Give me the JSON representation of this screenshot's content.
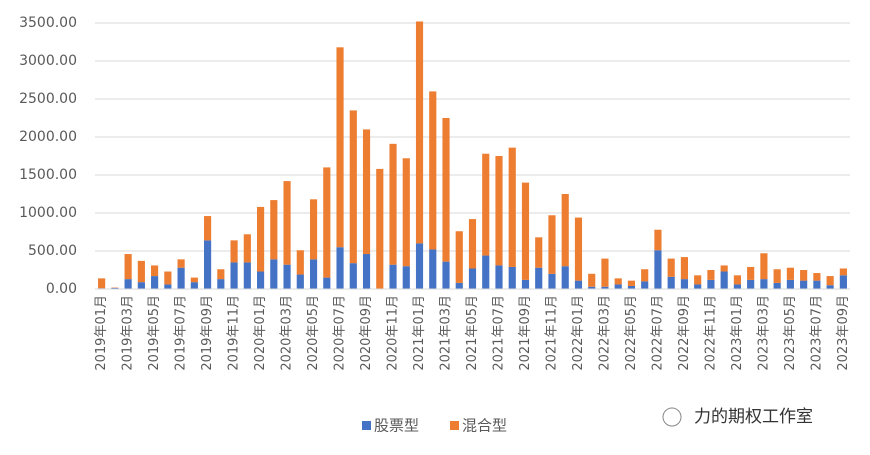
{
  "chart_data": {
    "type": "stacked_bar",
    "categories": [
      "2019年01月",
      null,
      "2019年03月",
      null,
      "2019年05月",
      null,
      "2019年07月",
      null,
      "2019年09月",
      null,
      "2019年11月",
      null,
      "2020年01月",
      null,
      "2020年03月",
      null,
      "2020年05月",
      null,
      "2020年07月",
      null,
      "2020年09月",
      null,
      "2020年11月",
      null,
      "2021年01月",
      null,
      "2021年03月",
      null,
      "2021年05月",
      null,
      "2021年07月",
      null,
      "2021年09月",
      null,
      "2021年11月",
      null,
      "2022年01月",
      null,
      "2022年03月",
      null,
      "2022年05月",
      null,
      "2022年07月",
      null,
      "2022年09月",
      null,
      "2022年11月",
      null,
      "2023年01月",
      null,
      "2023年03月",
      null,
      "2023年05月",
      null,
      "2023年07月",
      null,
      "2023年09月"
    ],
    "series": [
      {
        "name": "股票型",
        "color": "#4472c4",
        "values": [
          10,
          15,
          130,
          90,
          170,
          60,
          280,
          90,
          640,
          130,
          350,
          350,
          230,
          390,
          320,
          190,
          390,
          150,
          550,
          340,
          460,
          0,
          320,
          300,
          600,
          520,
          360,
          80,
          270,
          440,
          310,
          290,
          120,
          280,
          200,
          300,
          110,
          30,
          30,
          60,
          40,
          100,
          510,
          160,
          130,
          60,
          120,
          230,
          60,
          120,
          130,
          80,
          120,
          110,
          110,
          50,
          180
        ]
      },
      {
        "name": "混合型",
        "color": "#ed7d31",
        "values": [
          130,
          5,
          330,
          280,
          140,
          170,
          110,
          60,
          320,
          130,
          290,
          370,
          850,
          780,
          1100,
          320,
          790,
          1450,
          2630,
          2010,
          1640,
          1580,
          1590,
          1420,
          2920,
          2080,
          1890,
          680,
          650,
          1340,
          1440,
          1570,
          1280,
          400,
          770,
          950,
          830,
          170,
          370,
          80,
          70,
          160,
          270,
          240,
          290,
          120,
          130,
          80,
          120,
          170,
          340,
          180,
          160,
          140,
          100,
          120,
          90
        ]
      }
    ],
    "ylim": [
      0,
      3500
    ],
    "yticks": [
      {
        "value": 0,
        "label": "0.00"
      },
      {
        "value": 500,
        "label": "500.00"
      },
      {
        "value": 1000,
        "label": "1000.00"
      },
      {
        "value": 1500,
        "label": "1500.00"
      },
      {
        "value": 2000,
        "label": "2000.00"
      },
      {
        "value": 2500,
        "label": "2500.00"
      },
      {
        "value": 3000,
        "label": "3000.00"
      },
      {
        "value": 3500,
        "label": "3500.00"
      }
    ],
    "grid": true,
    "legend": "bottom",
    "watermark": "力的期权工作室"
  }
}
